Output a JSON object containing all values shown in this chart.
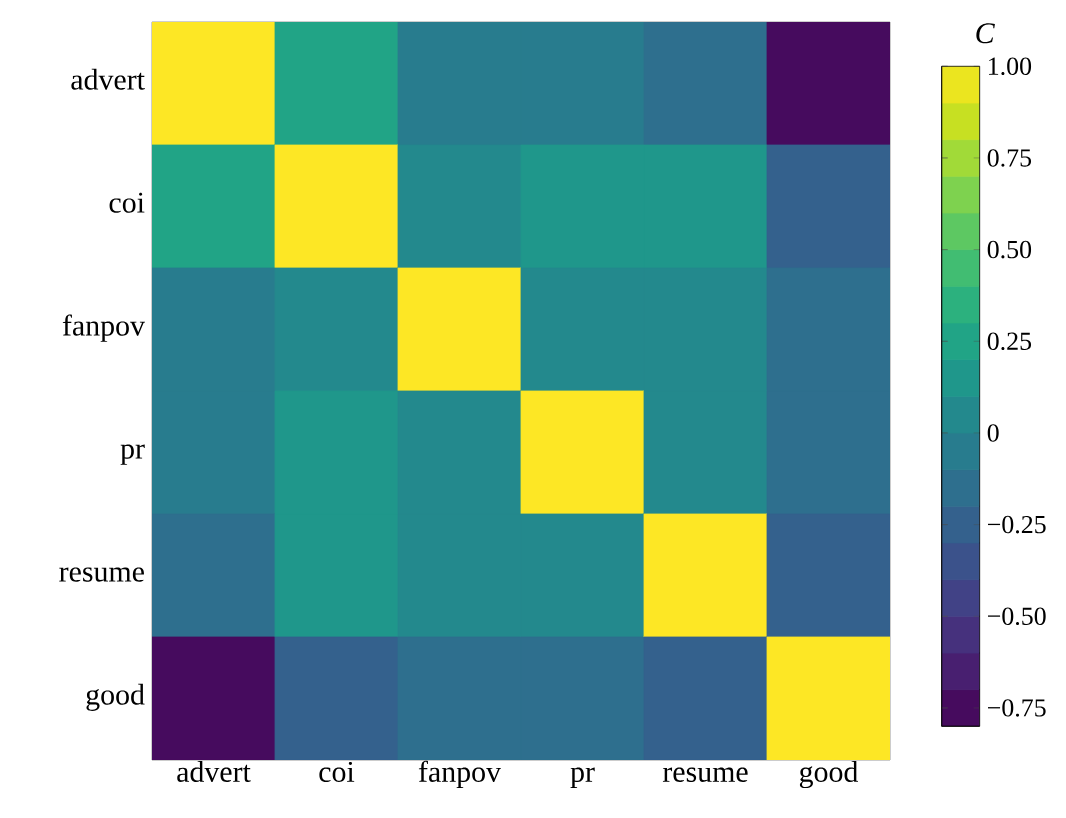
{
  "chart_data": {
    "type": "heatmap",
    "clabel": "C",
    "categories": [
      "advert",
      "coi",
      "fanpov",
      "pr",
      "resume",
      "good"
    ],
    "y_categories": [
      "advert",
      "coi",
      "fanpov",
      "pr",
      "resume",
      "good"
    ],
    "cells": [
      [
        1,
        0.25,
        -0.05,
        -0.05,
        -0.15,
        -0.75
      ],
      [
        0.25,
        1,
        0.05,
        0.15,
        0.15,
        -0.25
      ],
      [
        -0.05,
        0.05,
        1,
        0.05,
        0.05,
        -0.15
      ],
      [
        -0.05,
        0.15,
        0.05,
        1,
        0.05,
        -0.15
      ],
      [
        -0.15,
        0.15,
        0.05,
        0.05,
        1,
        -0.25
      ],
      [
        -0.75,
        -0.25,
        -0.15,
        -0.15,
        -0.25,
        1
      ]
    ],
    "clim": [
      -0.8,
      1.0
    ],
    "cticks": [
      {
        "value": 1,
        "label": "1.00"
      },
      0.75,
      {
        "value": 0.5,
        "label": "0.50"
      },
      0.25,
      0,
      {
        "value": -0.25,
        "label": "−0.25"
      },
      {
        "value": -0.5,
        "label": "−0.50"
      },
      {
        "value": -0.75,
        "label": "−0.75"
      }
    ]
  }
}
